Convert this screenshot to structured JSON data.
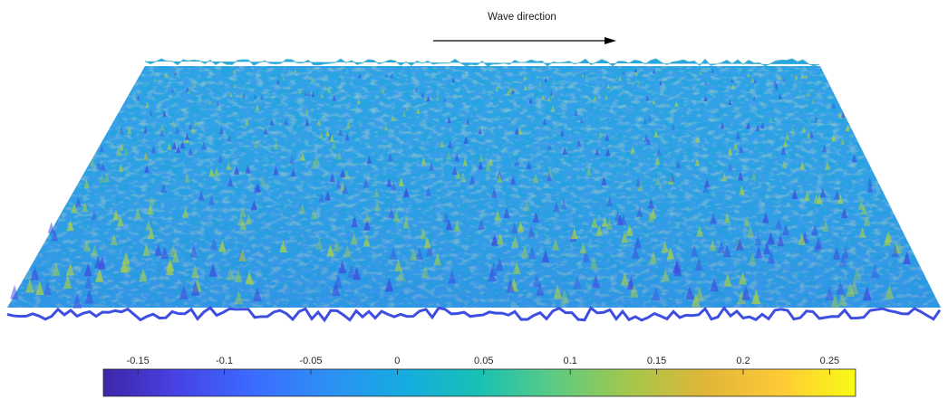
{
  "chart_data": {
    "type": "surface",
    "title": "",
    "annotation": {
      "text": "Wave direction",
      "arrow": "right"
    },
    "colorbar": {
      "orientation": "horizontal",
      "range": [
        -0.17,
        0.265
      ],
      "ticks": [
        -0.15,
        -0.1,
        -0.05,
        0,
        0.05,
        0.1,
        0.15,
        0.2,
        0.25
      ],
      "tick_labels": [
        "-0.15",
        "-0.1",
        "-0.05",
        "0",
        "0.05",
        "0.1",
        "0.15",
        "0.2",
        "0.25"
      ],
      "colormap": [
        "#3e26a8",
        "#4743e6",
        "#3b6cff",
        "#2d90f5",
        "#16ace0",
        "#18c0b4",
        "#5ccb82",
        "#a5c74b",
        "#e1b637",
        "#feca37",
        "#f9fb15"
      ]
    },
    "surface": {
      "base_color": "#25a5e1",
      "trough_color": "#3d4ee0",
      "crest_color": "#a6cf4c"
    },
    "grid": false
  }
}
